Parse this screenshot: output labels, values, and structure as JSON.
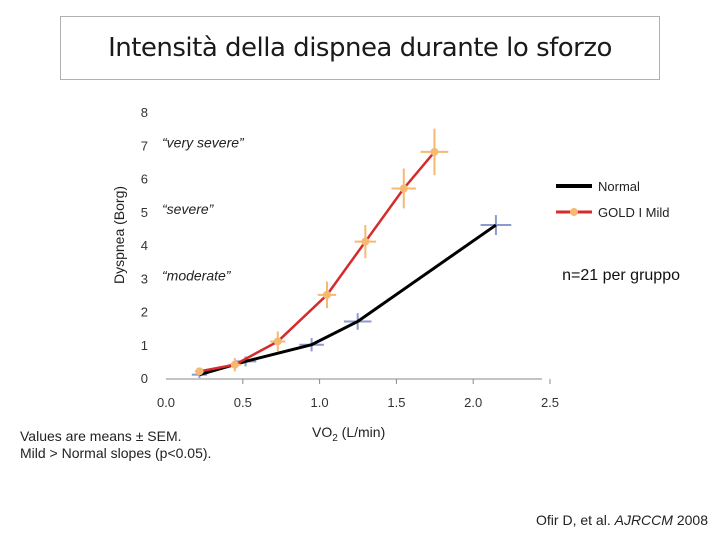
{
  "title": "Intensità della dispnea durante lo  sforzo",
  "note": {
    "line1": "Values are means ± SEM.",
    "line2": "Mild > Normal slopes (p<0.05)."
  },
  "xlabel": {
    "main": "VO",
    "sub": "2",
    "rest": " (L/min)"
  },
  "n_label": "n=21 per gruppo",
  "citation": {
    "authors": "Ofir D, et al. ",
    "journal": "AJRCCM",
    "year": " 2008"
  },
  "colors": {
    "normal": "#000000",
    "gold": "#d62b2b",
    "gold_marker": "#f5b971",
    "normal_marker": "#8c9ad0"
  },
  "chart_data": {
    "type": "line",
    "title": "Intensità della dispnea durante lo  sforzo",
    "xlabel": "VO2 (L/min)",
    "ylabel": "Dyspnea (Borg)",
    "xlim": [
      0.0,
      2.5
    ],
    "ylim": [
      0,
      8
    ],
    "xticks": [
      "0.0",
      "0.5",
      "1.0",
      "1.5",
      "2.0",
      "2.5"
    ],
    "yticks": [
      "0",
      "1",
      "2",
      "3",
      "4",
      "5",
      "6",
      "7",
      "8"
    ],
    "annotations": [
      {
        "label": "“very severe”",
        "y": 7
      },
      {
        "label": "“severe”",
        "y": 5
      },
      {
        "label": "“moderate”",
        "y": 3
      }
    ],
    "series": [
      {
        "name": "Normal",
        "x": [
          0.27,
          0.57,
          1.0,
          1.3,
          2.2
        ],
        "y": [
          0.1,
          0.5,
          1.0,
          1.7,
          4.6
        ],
        "xerr": [
          0.05,
          0.07,
          0.08,
          0.09,
          0.1
        ],
        "yerr": [
          0.1,
          0.15,
          0.2,
          0.25,
          0.3
        ]
      },
      {
        "name": "GOLD I Mild",
        "x": [
          0.27,
          0.5,
          0.78,
          1.1,
          1.35,
          1.6,
          1.8
        ],
        "y": [
          0.2,
          0.4,
          1.1,
          2.5,
          4.1,
          5.7,
          6.8
        ],
        "xerr": [
          0.03,
          0.04,
          0.05,
          0.06,
          0.07,
          0.08,
          0.09
        ],
        "yerr": [
          0.1,
          0.2,
          0.3,
          0.4,
          0.5,
          0.6,
          0.7
        ]
      }
    ]
  }
}
